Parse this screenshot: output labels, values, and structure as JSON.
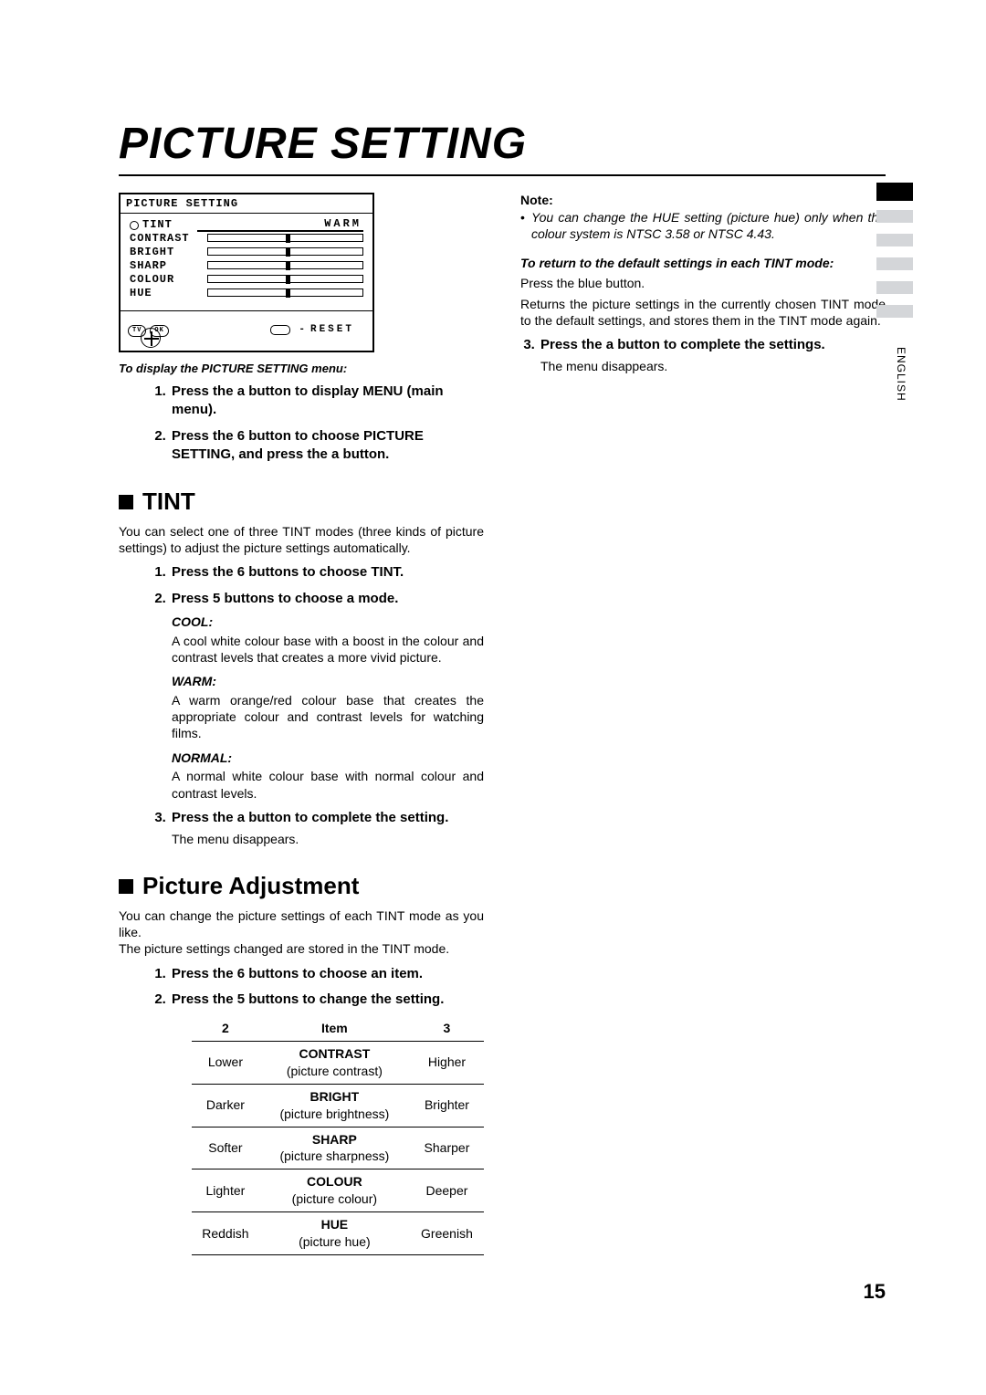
{
  "title": "PICTURE SETTING",
  "page_number": "15",
  "language_tab": "ENGLISH",
  "menu": {
    "title": "PICTURE SETTING",
    "tint_label": "TINT",
    "tint_value": "WARM",
    "items": [
      "CONTRAST",
      "BRIGHT",
      "SHARP",
      "COLOUR",
      "HUE"
    ],
    "marker_pct": [
      50,
      50,
      50,
      50,
      50
    ],
    "reset_label": "RESET",
    "pill_tv": "TV",
    "pill_ok": "OK",
    "colors": {
      "border": "#000000",
      "bg": "#ffffff"
    }
  },
  "left": {
    "display_menu_heading": "To display the PICTURE SETTING menu:",
    "menu_steps": [
      "Press the a      button to display MENU (main menu).",
      "Press the 6      button to choose PICTURE SETTING, and press the a      button."
    ],
    "tint": {
      "heading": "TINT",
      "intro": "You can select one of three TINT modes (three kinds of picture settings) to adjust the picture settings automatically.",
      "step1": "Press the 6       buttons to choose TINT.",
      "step2": "Press 5       buttons to choose a mode.",
      "cool_h": "COOL:",
      "cool_b": "A cool white colour base with a boost in the colour and contrast levels that creates a more vivid picture.",
      "warm_h": "WARM:",
      "warm_b": "A warm orange/red colour base that creates the appropriate colour and contrast levels for watching films.",
      "normal_h": "NORMAL:",
      "normal_b": "A normal white colour base with normal colour and contrast levels.",
      "step3": "Press the a      button to complete the setting.",
      "step3_sub": "The menu disappears."
    },
    "picture_adj": {
      "heading": "Picture Adjustment",
      "intro1": "You can change the picture settings of each TINT mode as you like.",
      "intro2": "The picture settings changed are stored in the TINT mode.",
      "step1": "Press the 6       buttons to choose an item.",
      "step2": "Press the 5       buttons to change the setting.",
      "table": {
        "head_l": "2",
        "head_m": "Item",
        "head_r": "3",
        "rows": [
          {
            "l": "Lower",
            "m": "CONTRAST",
            "d": "(picture contrast)",
            "r": "Higher"
          },
          {
            "l": "Darker",
            "m": "BRIGHT",
            "d": "(picture brightness)",
            "r": "Brighter"
          },
          {
            "l": "Softer",
            "m": "SHARP",
            "d": "(picture sharpness)",
            "r": "Sharper"
          },
          {
            "l": "Lighter",
            "m": "COLOUR",
            "d": "(picture colour)",
            "r": "Deeper"
          },
          {
            "l": "Reddish",
            "m": "HUE",
            "d": "(picture hue)",
            "r": "Greenish"
          }
        ]
      }
    }
  },
  "right": {
    "note_h": "Note:",
    "note_b": "You can change the HUE setting (picture hue) only when the colour system is  NTSC 3.58 or NTSC 4.43.",
    "return_h": "To return to the default settings in each TINT mode:",
    "return_p1": "Press the blue button.",
    "return_p2": "Returns the picture settings in the currently chosen TINT mode to the default settings, and stores them in the TINT mode again.",
    "step3": "Press the a      button to complete the settings.",
    "step3_sub": "The menu disappears."
  }
}
